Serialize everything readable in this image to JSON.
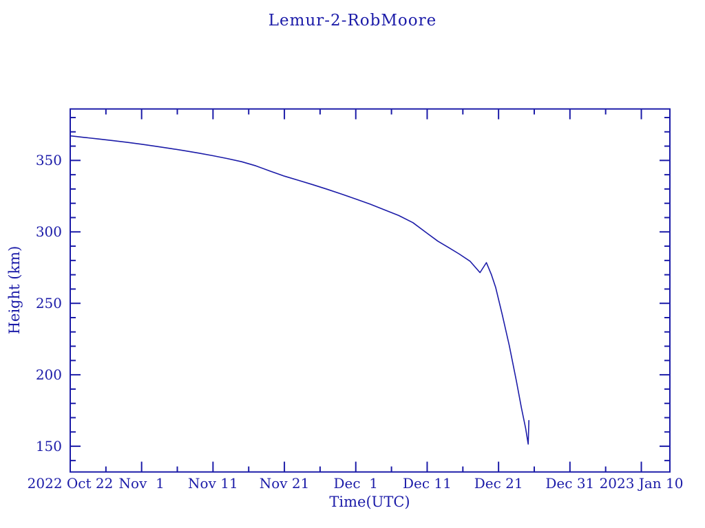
{
  "page": {
    "background_color": "#ffffff",
    "accent_color": "#1b1ba8"
  },
  "chart_data": {
    "type": "line",
    "title": "Lemur-2-RobMoore",
    "xlabel": "Time(UTC)",
    "ylabel": "Height (km)",
    "legend": "none",
    "grid": "off",
    "frame": "box with inward ticks on all four sides",
    "line_color": "#1b1ba8",
    "x_axis": {
      "unit": "days after 2022 Oct 22",
      "range_days": [
        0,
        84
      ],
      "major_ticks": [
        {
          "day": 0,
          "label": "2022 Oct 22"
        },
        {
          "day": 10,
          "label": "Nov  1"
        },
        {
          "day": 20,
          "label": "Nov 11"
        },
        {
          "day": 30,
          "label": "Nov 21"
        },
        {
          "day": 40,
          "label": "Dec  1"
        },
        {
          "day": 50,
          "label": "Dec 11"
        },
        {
          "day": 60,
          "label": "Dec 21"
        },
        {
          "day": 70,
          "label": "Dec 31"
        },
        {
          "day": 80,
          "label": "2023 Jan 10"
        }
      ],
      "minor_tick_days": [
        5,
        15,
        25,
        35,
        45,
        55,
        65,
        75
      ]
    },
    "y_axis": {
      "unit": "km",
      "range_km": [
        132,
        386
      ],
      "major_ticks": [
        {
          "km": 150,
          "label": "150"
        },
        {
          "km": 200,
          "label": "200"
        },
        {
          "km": 250,
          "label": "250"
        },
        {
          "km": 300,
          "label": "300"
        },
        {
          "km": 350,
          "label": "350"
        }
      ],
      "minor_tick_km": [
        140,
        160,
        170,
        180,
        190,
        210,
        220,
        230,
        240,
        260,
        270,
        280,
        290,
        310,
        320,
        330,
        340,
        360,
        370,
        380
      ]
    },
    "series": [
      {
        "name": "height",
        "points_day_km": [
          [
            0,
            367.2
          ],
          [
            2,
            366.1
          ],
          [
            4,
            365.0
          ],
          [
            6,
            363.8
          ],
          [
            8,
            362.6
          ],
          [
            10,
            361.3
          ],
          [
            12,
            359.9
          ],
          [
            14,
            358.4
          ],
          [
            16,
            356.8
          ],
          [
            18,
            355.1
          ],
          [
            20,
            353.3
          ],
          [
            22,
            351.3
          ],
          [
            24,
            349.1
          ],
          [
            26,
            346.2
          ],
          [
            28,
            342.5
          ],
          [
            30,
            339.0
          ],
          [
            32,
            336.0
          ],
          [
            34,
            333.0
          ],
          [
            36,
            329.8
          ],
          [
            38,
            326.5
          ],
          [
            40,
            323.0
          ],
          [
            42,
            319.4
          ],
          [
            44,
            315.5
          ],
          [
            46,
            311.5
          ],
          [
            48,
            306.5
          ],
          [
            50,
            299.0
          ],
          [
            51.5,
            293.5
          ],
          [
            53,
            289.0
          ],
          [
            54.5,
            284.5
          ],
          [
            56,
            279.5
          ],
          [
            57.4,
            271.5
          ],
          [
            58.3,
            278.5
          ],
          [
            59,
            270.0
          ],
          [
            59.6,
            261.0
          ],
          [
            60.5,
            242.5
          ],
          [
            61.5,
            220.5
          ],
          [
            62.5,
            195.5
          ],
          [
            63.2,
            177.0
          ],
          [
            63.8,
            162.5
          ],
          [
            64.15,
            151.5
          ],
          [
            64.25,
            168.0
          ]
        ]
      }
    ],
    "annotations": [
      "small V-shaped rebound near Dec 18-19 (271 km up to 278 km)",
      "steep final decay ending ~Dec 25 at ~152 km with short vertical uptick to ~168 km"
    ]
  }
}
